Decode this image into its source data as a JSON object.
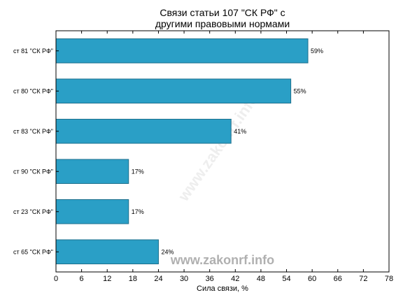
{
  "chart_data": {
    "type": "bar",
    "orientation": "horizontal",
    "title_lines": [
      "Связи статьи 107 \"СК РФ\" с",
      "другими правовыми нормами"
    ],
    "xlabel": "Сила связи, %",
    "ylabel": "",
    "categories": [
      "ст 81 \"СК РФ\"",
      "ст 80 \"СК РФ\"",
      "ст 83 \"СК РФ\"",
      "ст 90 \"СК РФ\"",
      "ст 23 \"СК РФ\"",
      "ст 65 \"СК РФ\""
    ],
    "values": [
      59,
      55,
      41,
      17,
      17,
      24
    ],
    "value_labels": [
      "59%",
      "55%",
      "41%",
      "17%",
      "17%",
      "24%"
    ],
    "xlim": [
      0,
      78
    ],
    "xticks": [
      0,
      6,
      12,
      18,
      24,
      30,
      36,
      42,
      48,
      54,
      60,
      66,
      72,
      78
    ],
    "grid": false,
    "bar_color": "#2a9fc6"
  },
  "watermark": {
    "main": "www.zakonrf.info",
    "faint": "www.zakonrf.info"
  }
}
